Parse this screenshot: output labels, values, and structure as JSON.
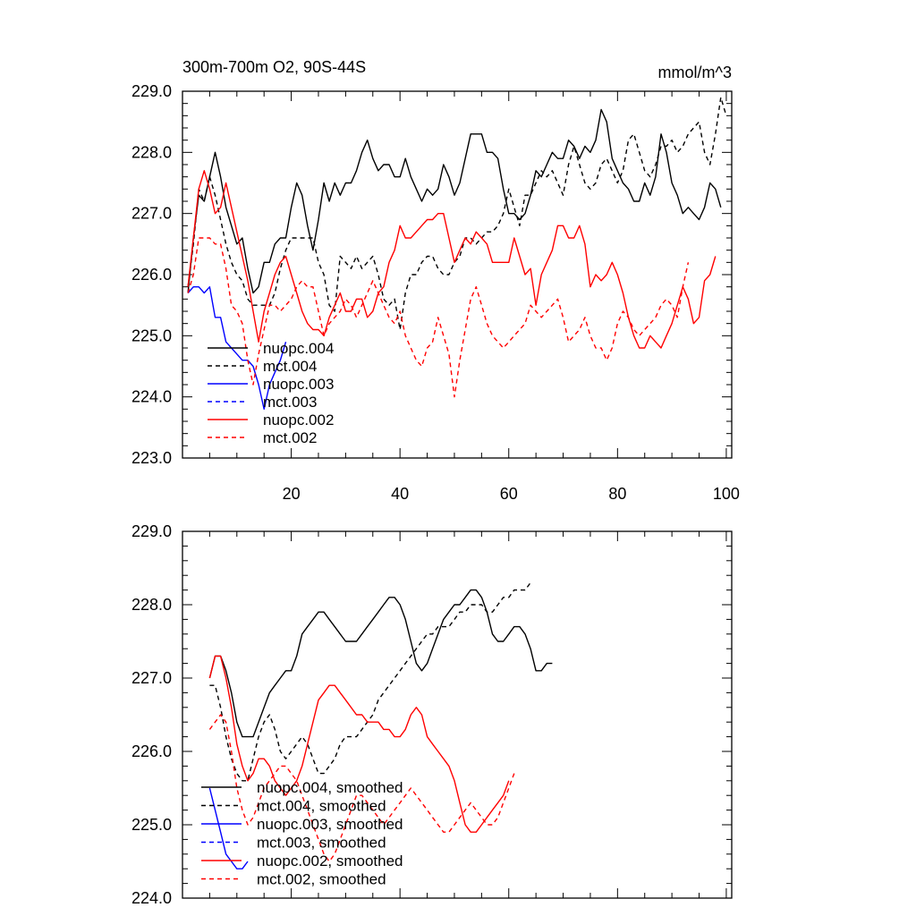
{
  "figure": {
    "title_left": "300m-700m O2, 90S-44S",
    "title_right": "mmol/m^3"
  },
  "chart_data": [
    {
      "type": "line",
      "panel": "top",
      "xlim": [
        0,
        101
      ],
      "ylim": [
        223.0,
        229.0
      ],
      "xticks": [
        20,
        40,
        60,
        80,
        100
      ],
      "xtick_labels": [
        "20",
        "40",
        "60",
        "80",
        "100"
      ],
      "yticks": [
        223.0,
        224.0,
        225.0,
        226.0,
        227.0,
        228.0,
        229.0
      ],
      "ytick_labels": [
        "223.0",
        "224.0",
        "225.0",
        "226.0",
        "227.0",
        "228.0",
        "229.0"
      ],
      "legend_position": "lower-left",
      "series": [
        {
          "name": "nuopc.004",
          "color": "#000000",
          "dash": "solid",
          "x_start": 1,
          "values": [
            225.7,
            226.6,
            227.3,
            227.2,
            227.6,
            228.0,
            227.6,
            227.1,
            226.8,
            226.5,
            226.6,
            226.1,
            225.7,
            225.8,
            226.2,
            226.2,
            226.5,
            226.6,
            226.6,
            227.1,
            227.5,
            227.3,
            226.8,
            226.4,
            226.9,
            227.5,
            227.2,
            227.5,
            227.3,
            227.5,
            227.5,
            227.7,
            228.0,
            228.2,
            227.9,
            227.7,
            227.8,
            227.8,
            227.6,
            227.6,
            227.9,
            227.6,
            227.4,
            227.2,
            227.4,
            227.3,
            227.4,
            227.8,
            227.6,
            227.3,
            227.5,
            227.9,
            228.3,
            228.3,
            228.3,
            228.0,
            228.0,
            227.9,
            227.4,
            227.0,
            227.0,
            226.9,
            227.0,
            227.3,
            227.7,
            227.6,
            227.8,
            228.0,
            227.9,
            227.9,
            228.2,
            228.1,
            227.9,
            228.1,
            228.0,
            228.2,
            228.7,
            228.5,
            227.9,
            227.7,
            227.5,
            227.4,
            227.2,
            227.2,
            227.5,
            227.3,
            227.6,
            228.3,
            228.0,
            227.5,
            227.3,
            227.0,
            227.1,
            227.0,
            226.9,
            227.1,
            227.5,
            227.4,
            227.1
          ]
        },
        {
          "name": "mct.004",
          "color": "#000000",
          "dash": "dashed",
          "x_start": 1,
          "values": [
            225.8,
            226.5,
            227.4,
            227.2,
            227.6,
            227.3,
            226.9,
            226.5,
            226.2,
            226.0,
            225.9,
            225.6,
            225.5,
            225.5,
            225.5,
            225.5,
            225.7,
            226.1,
            226.4,
            226.6,
            226.6,
            226.6,
            226.6,
            226.6,
            226.2,
            226.0,
            225.5,
            225.4,
            226.3,
            226.2,
            226.1,
            226.3,
            226.1,
            226.2,
            226.3,
            226.0,
            225.6,
            225.5,
            225.6,
            225.1,
            225.7,
            226.0,
            226.0,
            226.2,
            226.3,
            226.3,
            226.1,
            226.0,
            226.0,
            226.2,
            226.3,
            226.6,
            226.6,
            226.5,
            226.6,
            226.7,
            226.7,
            226.8,
            227.0,
            227.4,
            227.1,
            226.8,
            227.3,
            227.3,
            227.5,
            227.7,
            227.6,
            227.7,
            227.5,
            227.3,
            227.8,
            228.1,
            227.8,
            227.5,
            227.4,
            227.5,
            227.8,
            227.9,
            227.7,
            227.5,
            227.7,
            228.2,
            228.3,
            228.0,
            227.7,
            227.6,
            227.8,
            228.1,
            228.1,
            228.2,
            228.0,
            228.1,
            228.3,
            228.4,
            228.5,
            228.0,
            227.8,
            228.3,
            228.9,
            228.6
          ]
        },
        {
          "name": "nuopc.003",
          "color": "#0000ff",
          "dash": "solid",
          "x_start": 1,
          "values": [
            225.7,
            225.8,
            225.8,
            225.7,
            225.8,
            225.3,
            225.3,
            224.9,
            224.8,
            224.7,
            224.6,
            224.6,
            224.5,
            224.2,
            223.8,
            224.2,
            224.4,
            224.6,
            224.9
          ]
        },
        {
          "name": "mct.003",
          "color": "#0000ff",
          "dash": "dashed",
          "x_start": 1,
          "values": []
        },
        {
          "name": "nuopc.002",
          "color": "#ff0000",
          "dash": "solid",
          "x_start": 1,
          "values": [
            225.8,
            226.6,
            227.4,
            227.7,
            227.4,
            227.0,
            227.1,
            227.5,
            227.1,
            226.7,
            226.3,
            225.9,
            225.4,
            224.9,
            225.4,
            225.7,
            226.0,
            226.2,
            226.3,
            226.0,
            225.7,
            225.4,
            225.2,
            225.1,
            225.1,
            225.0,
            225.3,
            225.5,
            225.7,
            225.4,
            225.4,
            225.6,
            225.6,
            225.3,
            225.4,
            225.7,
            225.8,
            226.2,
            226.4,
            226.8,
            226.6,
            226.6,
            226.7,
            226.8,
            226.9,
            226.9,
            227.0,
            227.0,
            226.6,
            226.2,
            226.4,
            226.6,
            226.5,
            226.7,
            226.6,
            226.5,
            226.2,
            226.2,
            226.2,
            226.2,
            226.6,
            226.3,
            226.0,
            226.1,
            225.5,
            226.0,
            226.2,
            226.4,
            226.8,
            226.8,
            226.6,
            226.6,
            226.8,
            226.5,
            225.8,
            226.0,
            225.9,
            226.0,
            226.2,
            226.0,
            225.7,
            225.3,
            225.0,
            224.8,
            224.8,
            225.0,
            224.9,
            224.8,
            225.0,
            225.2,
            225.5,
            225.8,
            225.6,
            225.2,
            225.3,
            225.9,
            226.0,
            226.3
          ]
        },
        {
          "name": "mct.002",
          "color": "#ff0000",
          "dash": "dashed",
          "x_start": 1,
          "values": [
            225.7,
            226.0,
            226.6,
            226.6,
            226.6,
            226.5,
            226.5,
            226.1,
            225.5,
            225.4,
            225.2,
            224.6,
            224.2,
            224.7,
            225.1,
            225.5,
            225.5,
            225.4,
            225.5,
            225.6,
            225.8,
            225.9,
            225.8,
            225.8,
            225.4,
            225.0,
            225.2,
            225.3,
            225.4,
            225.6,
            225.5,
            225.3,
            225.5,
            225.7,
            225.9,
            225.7,
            225.5,
            225.3,
            225.2,
            225.4,
            225.0,
            224.8,
            224.6,
            224.5,
            224.8,
            224.9,
            225.3,
            225.0,
            224.7,
            224.0,
            224.6,
            225.1,
            225.6,
            225.8,
            225.5,
            225.2,
            225.0,
            224.9,
            224.8,
            224.9,
            225.0,
            225.1,
            225.2,
            225.5,
            225.4,
            225.3,
            225.4,
            225.5,
            225.6,
            225.3,
            224.9,
            225.0,
            225.1,
            225.3,
            225.0,
            224.8,
            224.8,
            224.6,
            224.8,
            225.2,
            225.4,
            225.3,
            225.1,
            225.0,
            225.1,
            225.2,
            225.3,
            225.5,
            225.6,
            225.5,
            225.3,
            225.8,
            226.2
          ]
        }
      ]
    },
    {
      "type": "line",
      "panel": "bottom",
      "xlim": [
        0,
        101
      ],
      "ylim": [
        224.0,
        229.0
      ],
      "xticks": [
        20,
        40,
        60,
        80,
        100
      ],
      "xtick_labels": [],
      "yticks": [
        224.0,
        225.0,
        226.0,
        227.0,
        228.0,
        229.0
      ],
      "ytick_labels": [
        "224.0",
        "225.0",
        "226.0",
        "227.0",
        "228.0",
        "229.0"
      ],
      "legend_position": "lower-left",
      "series": [
        {
          "name": "nuopc.004, smoothed",
          "color": "#000000",
          "dash": "solid",
          "x_start": 5,
          "values": [
            227.0,
            227.3,
            227.3,
            227.1,
            226.8,
            226.4,
            226.2,
            226.2,
            226.2,
            226.4,
            226.6,
            226.8,
            226.9,
            227.0,
            227.1,
            227.1,
            227.3,
            227.6,
            227.7,
            227.8,
            227.9,
            227.9,
            227.8,
            227.7,
            227.6,
            227.5,
            227.5,
            227.5,
            227.6,
            227.7,
            227.8,
            227.9,
            228.0,
            228.1,
            228.1,
            228.0,
            227.8,
            227.5,
            227.2,
            227.1,
            227.2,
            227.4,
            227.6,
            227.8,
            227.9,
            228.0,
            228.0,
            228.1,
            228.2,
            228.2,
            228.1,
            227.9,
            227.6,
            227.5,
            227.5,
            227.6,
            227.7,
            227.7,
            227.6,
            227.4,
            227.1,
            227.1,
            227.2,
            227.2
          ]
        },
        {
          "name": "mct.004, smoothed",
          "color": "#000000",
          "dash": "dashed",
          "x_start": 5,
          "values": [
            226.9,
            226.9,
            226.6,
            226.2,
            225.9,
            225.7,
            225.6,
            225.6,
            225.9,
            226.2,
            226.4,
            226.5,
            226.3,
            226.0,
            225.9,
            226.0,
            226.1,
            226.2,
            226.1,
            225.9,
            225.7,
            225.7,
            225.8,
            225.9,
            226.1,
            226.2,
            226.2,
            226.2,
            226.3,
            226.4,
            226.5,
            226.7,
            226.8,
            226.9,
            227.0,
            227.1,
            227.2,
            227.3,
            227.4,
            227.5,
            227.6,
            227.6,
            227.7,
            227.7,
            227.7,
            227.8,
            227.9,
            227.9,
            228.0,
            228.0,
            228.0,
            227.9,
            227.9,
            228.0,
            228.1,
            228.1,
            228.2,
            228.2,
            228.2,
            228.3
          ]
        },
        {
          "name": "nuopc.003, smoothed",
          "color": "#0000ff",
          "dash": "solid",
          "x_start": 5,
          "values": [
            225.5,
            225.2,
            224.9,
            224.6,
            224.5,
            224.4,
            224.4,
            224.5
          ]
        },
        {
          "name": "mct.003, smoothed",
          "color": "#0000ff",
          "dash": "dashed",
          "x_start": 5,
          "values": []
        },
        {
          "name": "nuopc.002, smoothed",
          "color": "#ff0000",
          "dash": "solid",
          "x_start": 5,
          "values": [
            227.0,
            227.3,
            227.3,
            227.0,
            226.6,
            226.1,
            225.8,
            225.6,
            225.7,
            225.9,
            225.9,
            225.8,
            225.6,
            225.5,
            225.4,
            225.5,
            225.6,
            225.8,
            226.1,
            226.4,
            226.7,
            226.8,
            226.9,
            226.9,
            226.8,
            226.7,
            226.6,
            226.5,
            226.5,
            226.4,
            226.4,
            226.4,
            226.3,
            226.3,
            226.2,
            226.2,
            226.3,
            226.5,
            226.6,
            226.5,
            226.2,
            226.1,
            226.0,
            225.9,
            225.8,
            225.6,
            225.3,
            225.0,
            224.9,
            224.9,
            225.0,
            225.1,
            225.2,
            225.3,
            225.4,
            225.6
          ]
        },
        {
          "name": "mct.002, smoothed",
          "color": "#ff0000",
          "dash": "dashed",
          "x_start": 5,
          "values": [
            226.3,
            226.4,
            226.5,
            226.4,
            226.0,
            225.5,
            225.2,
            225.0,
            225.1,
            225.3,
            225.5,
            225.6,
            225.7,
            225.8,
            225.8,
            225.7,
            225.6,
            225.4,
            225.2,
            225.0,
            224.8,
            224.6,
            224.5,
            224.6,
            224.8,
            225.0,
            225.2,
            225.4,
            225.4,
            225.3,
            225.2,
            225.1,
            225.0,
            225.1,
            225.2,
            225.3,
            225.4,
            225.5,
            225.4,
            225.3,
            225.2,
            225.1,
            225.0,
            224.9,
            224.9,
            225.0,
            225.1,
            225.2,
            225.3,
            225.2,
            225.1,
            225.0,
            225.0,
            225.1,
            225.3,
            225.5,
            225.7
          ]
        }
      ]
    }
  ]
}
